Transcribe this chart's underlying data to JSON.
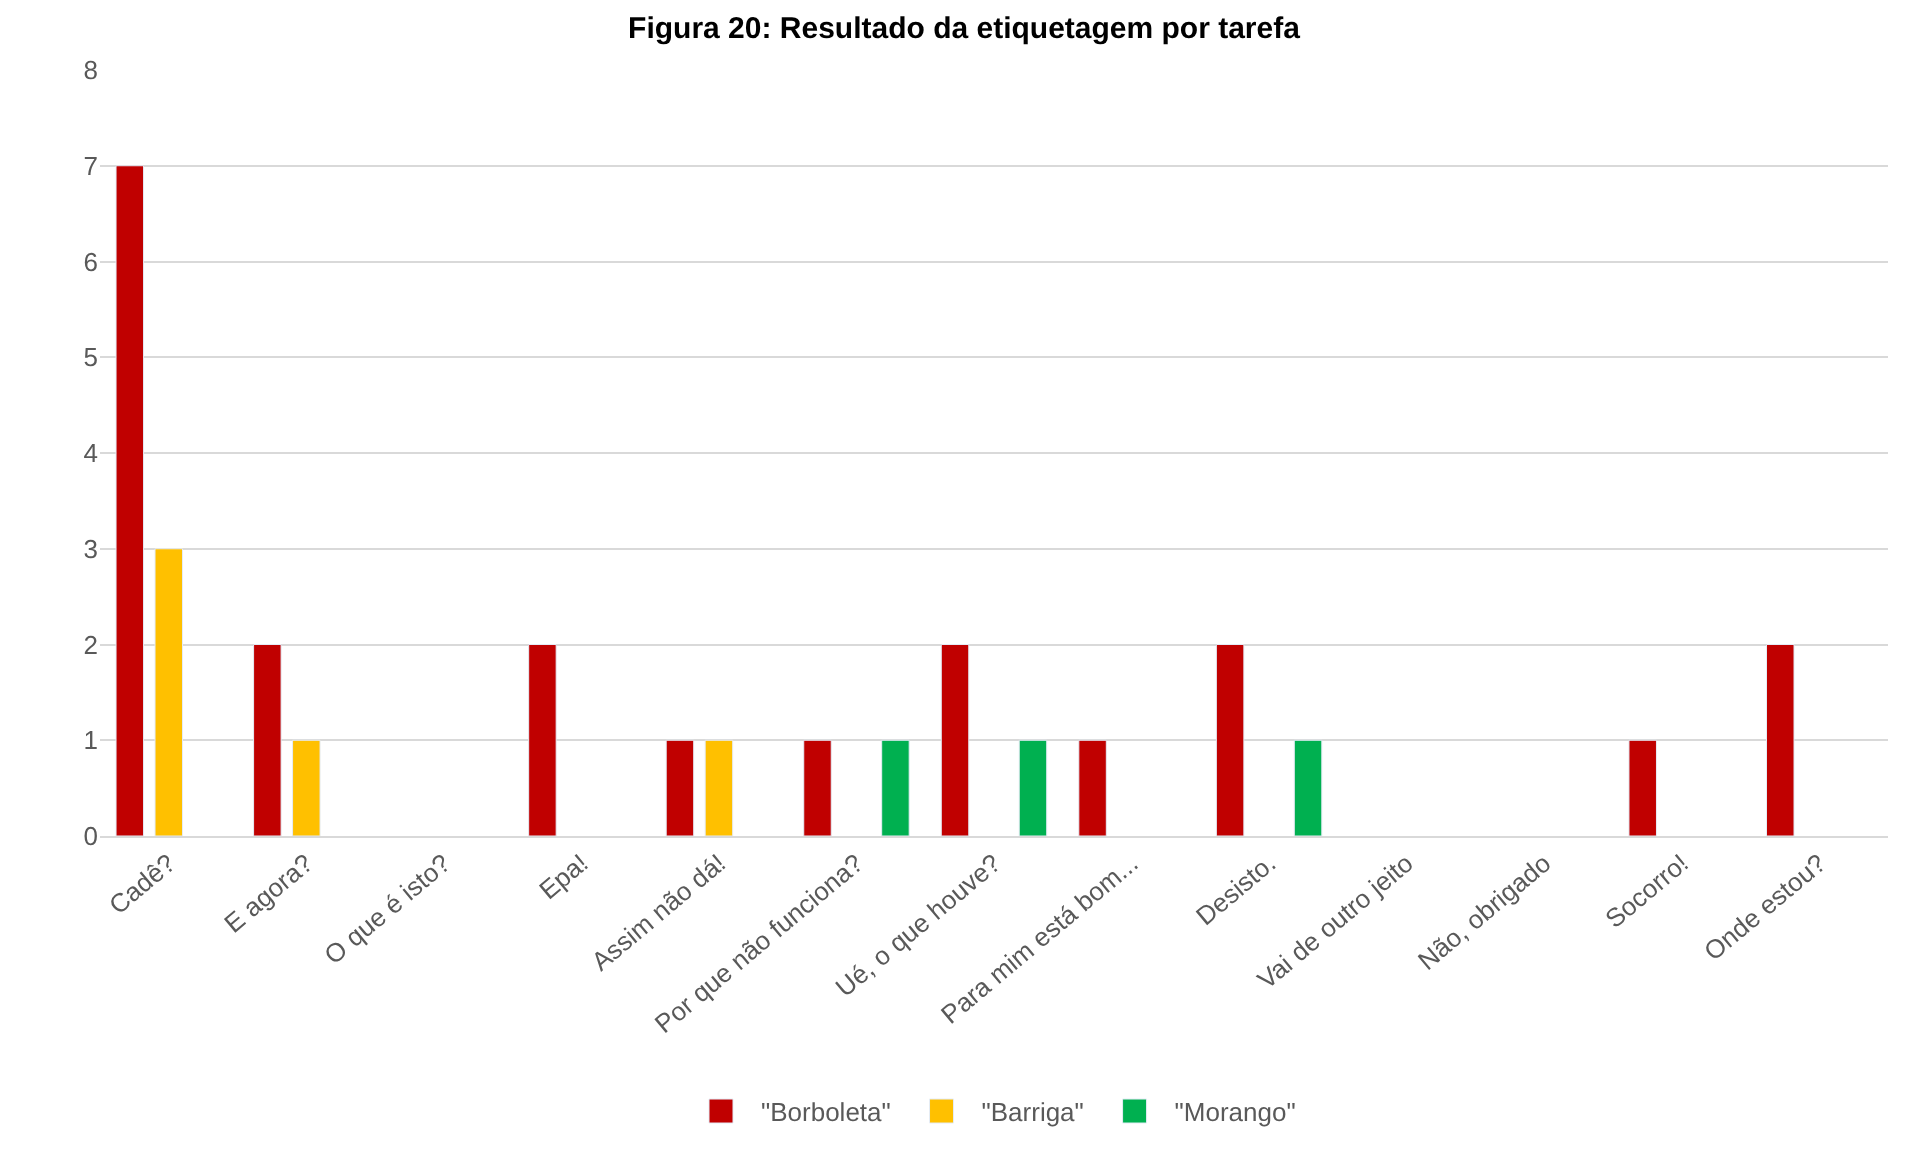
{
  "chart_data": {
    "type": "bar",
    "title": "Figura 20: Resultado da etiquetagem por tarefa",
    "categories": [
      "Cadê?",
      "E agora?",
      "O que é isto?",
      "Epa!",
      "Assim não dá!",
      "Por que não funciona?",
      "Ué, o que houve?",
      "Para mim está bom...",
      "Desisto.",
      "Vai de outro jeito",
      "Não, obrigado",
      "Socorro!",
      "Onde estou?"
    ],
    "series": [
      {
        "name": "\"Borboleta\"",
        "color": "#c00000",
        "values": [
          7,
          2,
          null,
          2,
          1,
          1,
          2,
          1,
          2,
          null,
          null,
          1,
          2
        ]
      },
      {
        "name": "\"Barriga\"",
        "color": "#ffc000",
        "values": [
          3,
          1,
          null,
          null,
          1,
          null,
          null,
          null,
          null,
          null,
          null,
          null,
          null
        ]
      },
      {
        "name": "\"Morango\"",
        "color": "#00b050",
        "values": [
          null,
          null,
          null,
          null,
          null,
          1,
          1,
          null,
          1,
          null,
          null,
          null,
          null
        ]
      }
    ],
    "ylim": [
      0,
      8
    ],
    "yticks": [
      0,
      1,
      2,
      3,
      4,
      5,
      6,
      7,
      8
    ],
    "grid": "y",
    "legend": "bottom"
  }
}
